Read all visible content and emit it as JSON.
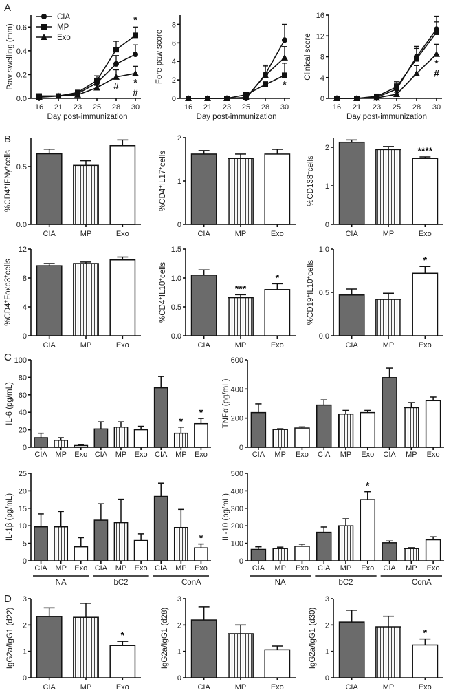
{
  "figure": {
    "panel_labels": [
      "A",
      "B",
      "C",
      "D"
    ],
    "groups": [
      "CIA",
      "MP",
      "Exo"
    ],
    "colors": {
      "CIA": "#6b6b6b",
      "MP": "stripes",
      "Exo": "#ffffff",
      "ink": "#111111"
    }
  },
  "chart_data": [
    {
      "id": "A1",
      "type": "line",
      "panel": "A",
      "ylabel": [
        {
          "t": "Paw swelling (mm)"
        }
      ],
      "xlabel": "Day post-immunization",
      "x": [
        16,
        21,
        23,
        25,
        28,
        30
      ],
      "ylim": [
        0,
        0.7
      ],
      "yticks": [
        0,
        0.2,
        0.4,
        0.6
      ],
      "ytick_labels": [
        "0.0",
        "0.2",
        "0.4",
        "0.6"
      ],
      "legend": {
        "placement": "top-left",
        "entries": [
          "CIA",
          "MP",
          "Exo"
        ]
      },
      "series": [
        {
          "name": "CIA",
          "marker": "circle",
          "values": [
            0.02,
            0.02,
            0.04,
            0.13,
            0.29,
            0.37
          ],
          "err": [
            0.01,
            0.01,
            0.01,
            0.04,
            0.07,
            0.08
          ]
        },
        {
          "name": "MP",
          "marker": "square",
          "values": [
            0.02,
            0.02,
            0.05,
            0.15,
            0.41,
            0.53
          ],
          "err": [
            0.01,
            0.01,
            0.01,
            0.04,
            0.07,
            0.07
          ]
        },
        {
          "name": "Exo",
          "marker": "triangle",
          "values": [
            0.01,
            0.02,
            0.03,
            0.09,
            0.18,
            0.21
          ],
          "err": [
            0.01,
            0.01,
            0.01,
            0.02,
            0.06,
            0.06
          ]
        }
      ],
      "annotations": [
        {
          "x": 30,
          "series": "MP",
          "side": "above",
          "text": [
            "*"
          ]
        },
        {
          "x": 28,
          "series": "Exo",
          "side": "below",
          "text": [
            "#"
          ]
        },
        {
          "x": 30,
          "series": "Exo",
          "side": "below",
          "text": [
            "*",
            "#"
          ]
        }
      ]
    },
    {
      "id": "A2",
      "type": "line",
      "panel": "A",
      "ylabel": [
        {
          "t": "Fore paw score"
        }
      ],
      "xlabel": "Day post-immunization",
      "x": [
        16,
        21,
        23,
        25,
        28,
        30
      ],
      "ylim": [
        0,
        9
      ],
      "yticks": [
        0,
        2,
        4,
        6,
        8
      ],
      "ytick_labels": [
        "0",
        "2",
        "4",
        "6",
        "8"
      ],
      "series": [
        {
          "name": "CIA",
          "marker": "circle",
          "values": [
            0,
            0,
            0,
            0,
            2.6,
            6.3
          ],
          "err": [
            0,
            0,
            0,
            0.2,
            1.0,
            1.7
          ]
        },
        {
          "name": "MP",
          "marker": "square",
          "values": [
            0,
            0,
            0,
            0.4,
            1.5,
            2.5
          ],
          "err": [
            0,
            0,
            0,
            0.2,
            0.3,
            1.3
          ]
        },
        {
          "name": "Exo",
          "marker": "triangle",
          "values": [
            0,
            0,
            0,
            0.1,
            2.5,
            4.4
          ],
          "err": [
            0,
            0,
            0,
            0.1,
            1.0,
            1.2
          ]
        }
      ],
      "annotations": [
        {
          "x": 30,
          "series": "MP",
          "side": "below",
          "text": [
            "*"
          ]
        }
      ]
    },
    {
      "id": "A3",
      "type": "line",
      "panel": "A",
      "ylabel": [
        {
          "t": "Clinical score"
        }
      ],
      "xlabel": "Day post-immunization",
      "x": [
        16,
        21,
        23,
        25,
        28,
        30
      ],
      "ylim": [
        0,
        16
      ],
      "yticks": [
        0,
        4,
        8,
        12,
        16
      ],
      "ytick_labels": [
        "0",
        "4",
        "8",
        "12",
        "16"
      ],
      "series": [
        {
          "name": "CIA",
          "marker": "circle",
          "values": [
            0,
            0,
            0.2,
            1.8,
            8,
            13.3
          ],
          "err": [
            0,
            0,
            0.2,
            1.0,
            2.0,
            2.5
          ]
        },
        {
          "name": "MP",
          "marker": "square",
          "values": [
            0,
            0,
            0.4,
            2.2,
            7.6,
            12.7
          ],
          "err": [
            0,
            0,
            0.2,
            1.0,
            2.0,
            2.0
          ]
        },
        {
          "name": "Exo",
          "marker": "triangle",
          "values": [
            0,
            0,
            0.1,
            0.8,
            4.8,
            8.5
          ],
          "err": [
            0,
            0,
            0.1,
            0.4,
            1.5,
            1.9
          ]
        }
      ],
      "annotations": [
        {
          "x": 30,
          "series": "Exo",
          "side": "below",
          "text": [
            "*",
            "#"
          ]
        }
      ]
    },
    {
      "id": "B1",
      "type": "bar",
      "panel": "B",
      "ylabel": [
        {
          "t": "%CD4"
        },
        {
          "t": "+",
          "sup": true
        },
        {
          "t": "IFNγ"
        },
        {
          "t": "+",
          "sup": true
        },
        {
          "t": "cells"
        }
      ],
      "categories": [
        "CIA",
        "MP",
        "Exo"
      ],
      "values": [
        0.61,
        0.51,
        0.68
      ],
      "err": [
        0.04,
        0.04,
        0.05
      ],
      "sig": [
        "",
        "",
        ""
      ],
      "ylim": [
        0,
        0.75
      ],
      "yticks": [
        0,
        0.5
      ],
      "ytick_labels": [
        "0.0",
        "0.5"
      ]
    },
    {
      "id": "B2",
      "type": "bar",
      "panel": "B",
      "ylabel": [
        {
          "t": "%CD4"
        },
        {
          "t": "+",
          "sup": true
        },
        {
          "t": "IL17"
        },
        {
          "t": "+",
          "sup": true
        },
        {
          "t": "cells"
        }
      ],
      "categories": [
        "CIA",
        "MP",
        "Exo"
      ],
      "values": [
        1.62,
        1.52,
        1.62
      ],
      "err": [
        0.08,
        0.1,
        0.11
      ],
      "sig": [
        "",
        "",
        ""
      ],
      "ylim": [
        0,
        2
      ],
      "yticks": [
        0,
        1,
        2
      ],
      "ytick_labels": [
        "0",
        "1",
        "2"
      ]
    },
    {
      "id": "B3",
      "type": "bar",
      "panel": "B",
      "ylabel": [
        {
          "t": "%CD138"
        },
        {
          "t": "+",
          "sup": true
        },
        {
          "t": "cells"
        }
      ],
      "categories": [
        "CIA",
        "MP",
        "Exo"
      ],
      "values": [
        2.13,
        1.94,
        1.71
      ],
      "err": [
        0.06,
        0.08,
        0.04
      ],
      "sig": [
        "",
        "",
        "****"
      ],
      "ylim": [
        0,
        2.25
      ],
      "yticks": [
        0,
        1,
        2
      ],
      "ytick_labels": [
        "0",
        "1",
        "2"
      ]
    },
    {
      "id": "B4",
      "type": "bar",
      "panel": "B",
      "ylabel": [
        {
          "t": "%CD4"
        },
        {
          "t": "+",
          "sup": true
        },
        {
          "t": "Foxp3"
        },
        {
          "t": "+",
          "sup": true
        },
        {
          "t": "cells"
        }
      ],
      "categories": [
        "CIA",
        "MP",
        "Exo"
      ],
      "values": [
        9.7,
        10.0,
        10.5
      ],
      "err": [
        0.3,
        0.2,
        0.4
      ],
      "sig": [
        "",
        "",
        ""
      ],
      "ylim": [
        0,
        12
      ],
      "yticks": [
        0,
        4,
        8,
        12
      ],
      "ytick_labels": [
        "0",
        "4",
        "8",
        "12"
      ]
    },
    {
      "id": "B5",
      "type": "bar",
      "panel": "B",
      "ylabel": [
        {
          "t": "%CD4"
        },
        {
          "t": "+",
          "sup": true
        },
        {
          "t": "IL10"
        },
        {
          "t": "+",
          "sup": true
        },
        {
          "t": "cells"
        }
      ],
      "categories": [
        "CIA",
        "MP",
        "Exo"
      ],
      "values": [
        1.05,
        0.66,
        0.8
      ],
      "err": [
        0.09,
        0.05,
        0.1
      ],
      "sig": [
        "",
        "***",
        "*"
      ],
      "ylim": [
        0,
        1.5
      ],
      "yticks": [
        0,
        0.5,
        1,
        1.5
      ],
      "ytick_labels": [
        "0.0",
        "0.5",
        "1.0",
        "1.5"
      ]
    },
    {
      "id": "B6",
      "type": "bar",
      "panel": "B",
      "ylabel": [
        {
          "t": "%CD19"
        },
        {
          "t": "+",
          "sup": true
        },
        {
          "t": "IL10"
        },
        {
          "t": "+",
          "sup": true
        },
        {
          "t": "cells"
        }
      ],
      "categories": [
        "CIA",
        "MP",
        "Exo"
      ],
      "values": [
        0.47,
        0.42,
        0.72
      ],
      "err": [
        0.07,
        0.07,
        0.08
      ],
      "sig": [
        "",
        "",
        "*"
      ],
      "ylim": [
        0,
        1
      ],
      "yticks": [
        0,
        0.5,
        1
      ],
      "ytick_labels": [
        "0.0",
        "0.5",
        "1.0"
      ]
    },
    {
      "id": "C1",
      "type": "bar",
      "panel": "C",
      "ylabel": [
        {
          "t": "IL-6 (pg/mL)"
        }
      ],
      "categories": [
        "CIA",
        "MP",
        "Exo",
        "CIA",
        "MP",
        "Exo",
        "CIA",
        "MP",
        "Exo"
      ],
      "values": [
        11,
        8,
        2,
        21,
        23,
        20,
        68,
        16,
        27
      ],
      "err": [
        5,
        3,
        1,
        8,
        6,
        4,
        13,
        7,
        6
      ],
      "sig": [
        "",
        "",
        "",
        "",
        "",
        "",
        "",
        "*",
        "*"
      ],
      "ylim": [
        0,
        100
      ],
      "yticks": [
        0,
        20,
        40,
        60,
        80,
        100
      ],
      "ytick_labels": [
        "0",
        "20",
        "40",
        "60",
        "80",
        "100"
      ]
    },
    {
      "id": "C2",
      "type": "bar",
      "panel": "C",
      "ylabel": [
        {
          "t": "TNFα (pg/mL)"
        }
      ],
      "categories": [
        "CIA",
        "MP",
        "Exo",
        "CIA",
        "MP",
        "Exo",
        "CIA",
        "MP",
        "Exo"
      ],
      "values": [
        238,
        122,
        132,
        290,
        228,
        238,
        478,
        272,
        320
      ],
      "err": [
        60,
        5,
        8,
        35,
        25,
        15,
        65,
        35,
        25
      ],
      "sig": [
        "",
        "",
        "",
        "",
        "",
        "",
        "",
        "",
        ""
      ],
      "ylim": [
        0,
        600
      ],
      "yticks": [
        0,
        200,
        400,
        600
      ],
      "ytick_labels": [
        "0",
        "200",
        "400",
        "600"
      ]
    },
    {
      "id": "C3",
      "type": "bar",
      "panel": "C",
      "ylabel": [
        {
          "t": "IL-1β (pg/mL)"
        }
      ],
      "categories": [
        "CIA",
        "MP",
        "Exo",
        "CIA",
        "MP",
        "Exo",
        "CIA",
        "MP",
        "Exo"
      ],
      "values": [
        9.7,
        9.7,
        4.0,
        11.6,
        10.9,
        5.8,
        18.4,
        9.5,
        3.7
      ],
      "err": [
        3.7,
        4.4,
        2.6,
        4.7,
        6.7,
        1.9,
        3.8,
        5.2,
        1.1
      ],
      "sig": [
        "",
        "",
        "",
        "",
        "",
        "",
        "",
        "",
        "*"
      ],
      "ylim": [
        0,
        25
      ],
      "yticks": [
        0,
        5,
        10,
        15,
        20,
        25
      ],
      "ytick_labels": [
        "0",
        "5",
        "10",
        "15",
        "20",
        "25"
      ],
      "group_labels": [
        "NA",
        "bC2",
        "ConA"
      ]
    },
    {
      "id": "C4",
      "type": "bar",
      "panel": "C",
      "ylabel": [
        {
          "t": "IL-10 (pg/mL)"
        }
      ],
      "categories": [
        "CIA",
        "MP",
        "Exo",
        "CIA",
        "MP",
        "Exo",
        "CIA",
        "MP",
        "Exo"
      ],
      "values": [
        65,
        70,
        83,
        163,
        200,
        350,
        103,
        70,
        120
      ],
      "err": [
        15,
        8,
        12,
        30,
        40,
        45,
        10,
        5,
        17
      ],
      "sig": [
        "",
        "",
        "",
        "",
        "",
        "*",
        "",
        "",
        ""
      ],
      "ylim": [
        0,
        500
      ],
      "yticks": [
        0,
        100,
        200,
        300,
        400,
        500
      ],
      "ytick_labels": [
        "0",
        "100",
        "200",
        "300",
        "400",
        "500"
      ],
      "group_labels": [
        "NA",
        "bC2",
        "ConA"
      ]
    },
    {
      "id": "D1",
      "type": "bar",
      "panel": "D",
      "ylabel": [
        {
          "t": "IgG2a/IgG1 (d22)"
        }
      ],
      "categories": [
        "CIA",
        "MP",
        "Exo"
      ],
      "values": [
        2.32,
        2.29,
        1.22
      ],
      "err": [
        0.33,
        0.53,
        0.16
      ],
      "sig": [
        "",
        "",
        "*"
      ],
      "ylim": [
        0,
        3
      ],
      "yticks": [
        0,
        1,
        2,
        3
      ],
      "ytick_labels": [
        "0",
        "1",
        "2",
        "3"
      ]
    },
    {
      "id": "D2",
      "type": "bar",
      "panel": "D",
      "ylabel": [
        {
          "t": "IgG2a/IgG1 (d28)"
        }
      ],
      "categories": [
        "CIA",
        "MP",
        "Exo"
      ],
      "values": [
        2.19,
        1.67,
        1.06
      ],
      "err": [
        0.5,
        0.33,
        0.14
      ],
      "sig": [
        "",
        "",
        ""
      ],
      "ylim": [
        0,
        3
      ],
      "yticks": [
        0,
        1,
        2,
        3
      ],
      "ytick_labels": [
        "0",
        "1",
        "2",
        "3"
      ]
    },
    {
      "id": "D3",
      "type": "bar",
      "panel": "D",
      "ylabel": [
        {
          "t": "IgG2a/IgG1 (d30)"
        }
      ],
      "categories": [
        "CIA",
        "MP",
        "Exo"
      ],
      "values": [
        2.11,
        1.93,
        1.24
      ],
      "err": [
        0.45,
        0.4,
        0.23
      ],
      "sig": [
        "",
        "",
        "*"
      ],
      "ylim": [
        0,
        3
      ],
      "yticks": [
        0,
        1,
        2,
        3
      ],
      "ytick_labels": [
        "0",
        "1",
        "2",
        "3"
      ]
    }
  ]
}
